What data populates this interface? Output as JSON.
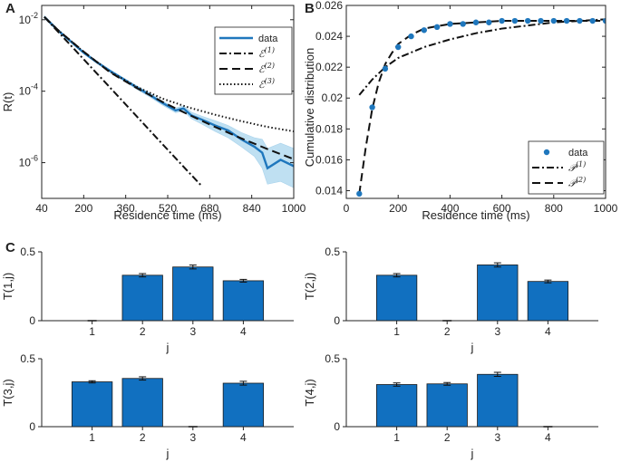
{
  "panel_labels": [
    "A",
    "B",
    "C"
  ],
  "colors": {
    "data": "#1f77bd",
    "band": "#bfe0f2",
    "bar": "#1170c0",
    "line": "#111111",
    "axis": "#222222"
  },
  "chart_data": [
    {
      "id": "A",
      "type": "line",
      "xlabel": "Residence time (ms)",
      "ylabel": "R(t)",
      "xlim": [
        40,
        1000
      ],
      "ylim_log10": [
        -7,
        -1.6
      ],
      "yscale": "log",
      "grid": false,
      "legend": "top-right",
      "x_ticks": [
        40,
        200,
        360,
        520,
        680,
        840,
        1000
      ],
      "y_ticks": [
        {
          "exp": -2,
          "label": "10",
          "sup": "-2"
        },
        {
          "exp": -4,
          "label": "10",
          "sup": "-4"
        },
        {
          "exp": -6,
          "label": "10",
          "sup": "-6"
        }
      ],
      "series": [
        {
          "name": "data",
          "style": "solid",
          "x": [
            50,
            100,
            150,
            200,
            250,
            300,
            350,
            400,
            450,
            500,
            550,
            580,
            610,
            650,
            700,
            750,
            800,
            850,
            880,
            900,
            950,
            1000
          ],
          "y": [
            0.012,
            0.0052,
            0.0025,
            0.0012,
            0.00065,
            0.00037,
            0.00022,
            0.00013,
            8e-05,
            4.7e-05,
            2.9e-05,
            3.3e-05,
            2.1e-05,
            1.6e-05,
            1.1e-05,
            8e-06,
            4.5e-06,
            2.8e-06,
            1.9e-06,
            7e-07,
            1.2e-06,
            8e-07
          ],
          "band_low": [
            0.011,
            0.0048,
            0.0023,
            0.0011,
            0.0006,
            0.00034,
            0.0002,
            0.000115,
            7e-05,
            4.1e-05,
            2.5e-05,
            2.8e-05,
            1.7e-05,
            1.2e-05,
            7.5e-06,
            5e-06,
            2.8e-06,
            1.5e-06,
            7e-07,
            2.5e-07,
            3e-07,
            2e-07
          ],
          "band_high": [
            0.013,
            0.0056,
            0.0027,
            0.0013,
            0.0007,
            0.0004,
            0.00024,
            0.000145,
            9e-05,
            5.3e-05,
            3.4e-05,
            3.9e-05,
            2.6e-05,
            2e-05,
            1.5e-05,
            1.1e-05,
            7e-06,
            5e-06,
            4.5e-06,
            2.5e-06,
            3.5e-06,
            2.5e-06
          ]
        },
        {
          "name": "𝓔(1)",
          "base": "ℰ",
          "sup": "(1)",
          "style": "dashdot",
          "x": [
            50,
            100,
            200,
            300,
            400,
            500,
            600,
            650
          ],
          "y": [
            0.012,
            0.0048,
            0.00078,
            0.000127,
            2.05e-05,
            3.3e-06,
            5.4e-07,
            2.2e-07
          ]
        },
        {
          "name": "𝓔(2)",
          "base": "ℰ",
          "sup": "(2)",
          "style": "dashed",
          "x": [
            50,
            100,
            150,
            200,
            300,
            400,
            500,
            600,
            700,
            800,
            900,
            1000
          ],
          "y": [
            0.012,
            0.0053,
            0.0026,
            0.00128,
            0.000338,
            0.000125,
            5e-05,
            2.2e-05,
            1e-05,
            4.8e-06,
            2.4e-06,
            1.25e-06
          ]
        },
        {
          "name": "𝓔(3)",
          "base": "ℰ",
          "sup": "(3)",
          "style": "dotted",
          "x": [
            50,
            100,
            150,
            200,
            300,
            400,
            500,
            600,
            700,
            800,
            900,
            1000
          ],
          "y": [
            0.012,
            0.0053,
            0.0026,
            0.00125,
            0.00035,
            0.000135,
            6.2e-05,
            3.5e-05,
            2.2e-05,
            1.45e-05,
            1e-05,
            7.5e-06
          ]
        }
      ]
    },
    {
      "id": "B",
      "type": "line",
      "xlabel": "Residence time (ms)",
      "ylabel": "Cumulative distribution",
      "xlim": [
        0,
        1000
      ],
      "ylim": [
        0.0135,
        0.026
      ],
      "grid": false,
      "legend": "bottom-right",
      "x_ticks": [
        0,
        200,
        400,
        600,
        800,
        1000
      ],
      "y_ticks": [
        0.014,
        0.016,
        0.018,
        0.02,
        0.022,
        0.024,
        0.026
      ],
      "series": [
        {
          "name": "data",
          "style": "markers",
          "x": [
            50,
            100,
            150,
            200,
            250,
            300,
            350,
            400,
            450,
            500,
            550,
            600,
            650,
            700,
            750,
            800,
            850,
            900,
            950,
            1000
          ],
          "y": [
            0.0138,
            0.0194,
            0.0219,
            0.0233,
            0.024,
            0.0244,
            0.0246,
            0.0248,
            0.0248,
            0.0249,
            0.0249,
            0.025,
            0.025,
            0.025,
            0.025,
            0.025,
            0.025,
            0.025,
            0.025,
            0.025
          ]
        },
        {
          "name": "𝓟(1)",
          "base": "𝒫",
          "sup": "(1)",
          "style": "dashdot",
          "x": [
            50,
            100,
            150,
            200,
            300,
            400,
            500,
            600,
            700,
            800,
            900,
            1000
          ],
          "y": [
            0.0202,
            0.0212,
            0.022,
            0.0226,
            0.0233,
            0.0238,
            0.0242,
            0.0245,
            0.0247,
            0.0249,
            0.025,
            0.0251
          ]
        },
        {
          "name": "𝓟(2)",
          "base": "𝒫",
          "sup": "(2)",
          "style": "dashed",
          "x": [
            50,
            75,
            100,
            125,
            150,
            175,
            200,
            250,
            300,
            400,
            500,
            600,
            700,
            800,
            900,
            1000
          ],
          "y": [
            0.0138,
            0.0168,
            0.0193,
            0.021,
            0.0222,
            0.0229,
            0.0235,
            0.0241,
            0.0245,
            0.0248,
            0.0249,
            0.025,
            0.025,
            0.025,
            0.025,
            0.025
          ]
        }
      ]
    },
    {
      "id": "C1",
      "type": "bar",
      "ylabel": "T(1,j)",
      "xlabel": "j",
      "categories": [
        "1",
        "2",
        "3",
        "4"
      ],
      "ylim": [
        0,
        0.5
      ],
      "y_ticks": [
        0,
        0.5
      ],
      "values": [
        0,
        0.33,
        0.39,
        0.29
      ],
      "errors": [
        0,
        0.012,
        0.014,
        0.01
      ]
    },
    {
      "id": "C2",
      "type": "bar",
      "ylabel": "T(2,j)",
      "xlabel": "j",
      "categories": [
        "1",
        "2",
        "3",
        "4"
      ],
      "ylim": [
        0,
        0.5
      ],
      "y_ticks": [
        0,
        0.5
      ],
      "values": [
        0.33,
        0,
        0.405,
        0.285
      ],
      "errors": [
        0.012,
        0,
        0.015,
        0.01
      ]
    },
    {
      "id": "C3",
      "type": "bar",
      "ylabel": "T(3,j)",
      "xlabel": "j",
      "categories": [
        "1",
        "2",
        "3",
        "4"
      ],
      "ylim": [
        0,
        0.5
      ],
      "y_ticks": [
        0,
        0.5
      ],
      "values": [
        0.33,
        0.355,
        0,
        0.32
      ],
      "errors": [
        0.008,
        0.012,
        0,
        0.014
      ]
    },
    {
      "id": "C4",
      "type": "bar",
      "ylabel": "T(4,j)",
      "xlabel": "j",
      "categories": [
        "1",
        "2",
        "3",
        "4"
      ],
      "ylim": [
        0,
        0.5
      ],
      "y_ticks": [
        0,
        0.5
      ],
      "values": [
        0.31,
        0.315,
        0.385,
        0
      ],
      "errors": [
        0.012,
        0.01,
        0.015,
        0
      ]
    }
  ]
}
